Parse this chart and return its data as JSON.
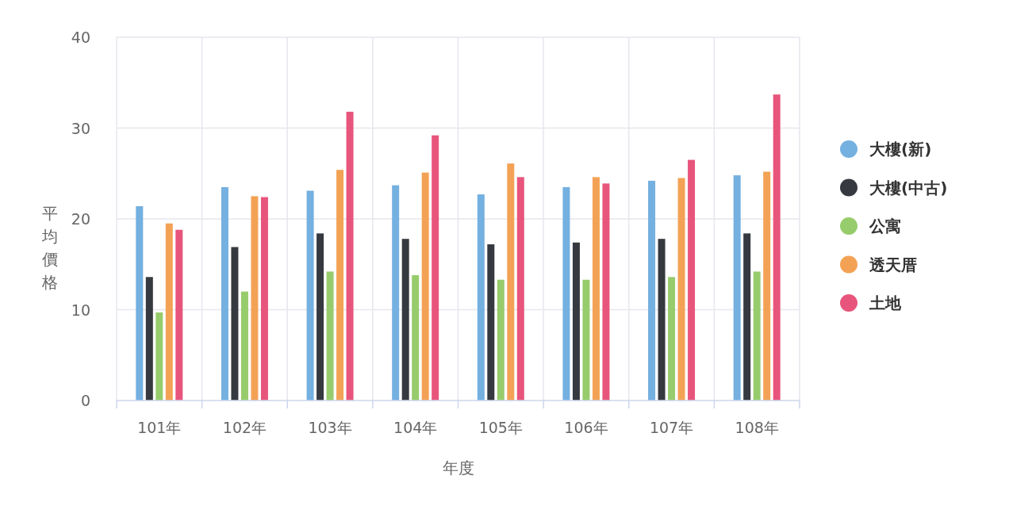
{
  "chart_data": {
    "type": "bar",
    "xlabel": "年度",
    "ylabel": "平均價格",
    "categories": [
      "101年",
      "102年",
      "103年",
      "104年",
      "105年",
      "106年",
      "107年",
      "108年"
    ],
    "series": [
      {
        "name": "大樓(新)",
        "color": "#74b0e0",
        "values": [
          21.4,
          23.5,
          23.1,
          23.7,
          22.7,
          23.5,
          24.2,
          24.8
        ]
      },
      {
        "name": "大樓(中古)",
        "color": "#36393f",
        "values": [
          13.6,
          16.9,
          18.4,
          17.8,
          17.2,
          17.4,
          17.8,
          18.4
        ]
      },
      {
        "name": "公寓",
        "color": "#97cc6c",
        "values": [
          9.7,
          12.0,
          14.2,
          13.8,
          13.3,
          13.3,
          13.6,
          14.2
        ]
      },
      {
        "name": "透天厝",
        "color": "#f3a255",
        "values": [
          19.5,
          22.5,
          25.4,
          25.1,
          26.1,
          24.6,
          24.5,
          25.2
        ]
      },
      {
        "name": "土地",
        "color": "#e8557c",
        "values": [
          18.8,
          22.4,
          31.8,
          29.2,
          24.6,
          23.9,
          26.5,
          33.7
        ]
      }
    ],
    "ylim": [
      0,
      40
    ],
    "yticks": [
      0,
      10,
      20,
      30,
      40
    ],
    "grid": true,
    "legend": "right"
  }
}
